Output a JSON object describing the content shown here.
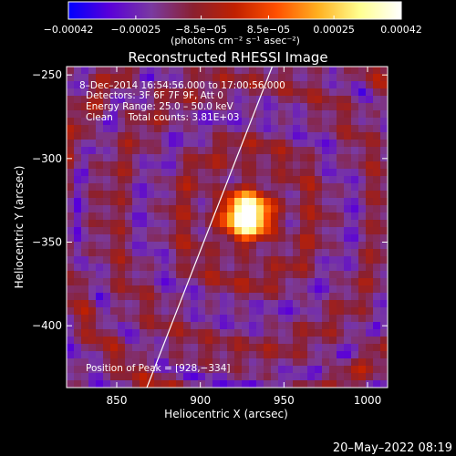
{
  "chart_data": {
    "type": "heatmap",
    "title": "Reconstructed RHESSI Image",
    "xlabel": "Heliocentric X (arcsec)",
    "ylabel": "Heliocentric Y (arcsec)",
    "xlim": [
      820,
      1012
    ],
    "ylim": [
      -437,
      -245
    ],
    "x_ticks": [
      850,
      900,
      950,
      1000
    ],
    "y_ticks": [
      -250,
      -300,
      -350,
      -400
    ],
    "x_tick_labels": [
      "850",
      "900",
      "950",
      "1000"
    ],
    "y_tick_labels": [
      "−250",
      "−300",
      "−350",
      "−400"
    ],
    "colorbar": {
      "ticks": [
        -0.00042,
        -0.00025,
        -8.5e-05,
        8.5e-05,
        0.00025,
        0.00042
      ],
      "tick_labels": [
        "−0.00042",
        "−0.00025",
        "−8.5e−05",
        "8.5e−05",
        "0.00025",
        "0.00042"
      ],
      "units": "(photons cm⁻² s⁻¹ asec⁻²)",
      "colors": [
        "#0000ff",
        "#5a00d8",
        "#7a3aa0",
        "#8a2030",
        "#c02000",
        "#ff5000",
        "#ffb020",
        "#ffff90",
        "#ffffff"
      ]
    },
    "annotations": [
      "8–Dec–2014 16:54:56.000 to 17:00:56.000",
      "Detectors: 3F 6F 7F 9F, Att 0",
      "Energy Range: 25.0 – 50.0 keV",
      "Clean     Total counts: 3.81E+03"
    ],
    "peak_label": "Position of Peak = [928,−334]",
    "peak": [
      928,
      -334
    ],
    "limb_line": [
      [
        868,
        -437
      ],
      [
        943,
        -245
      ]
    ],
    "timestamp": "20–May–2022 08:19"
  }
}
